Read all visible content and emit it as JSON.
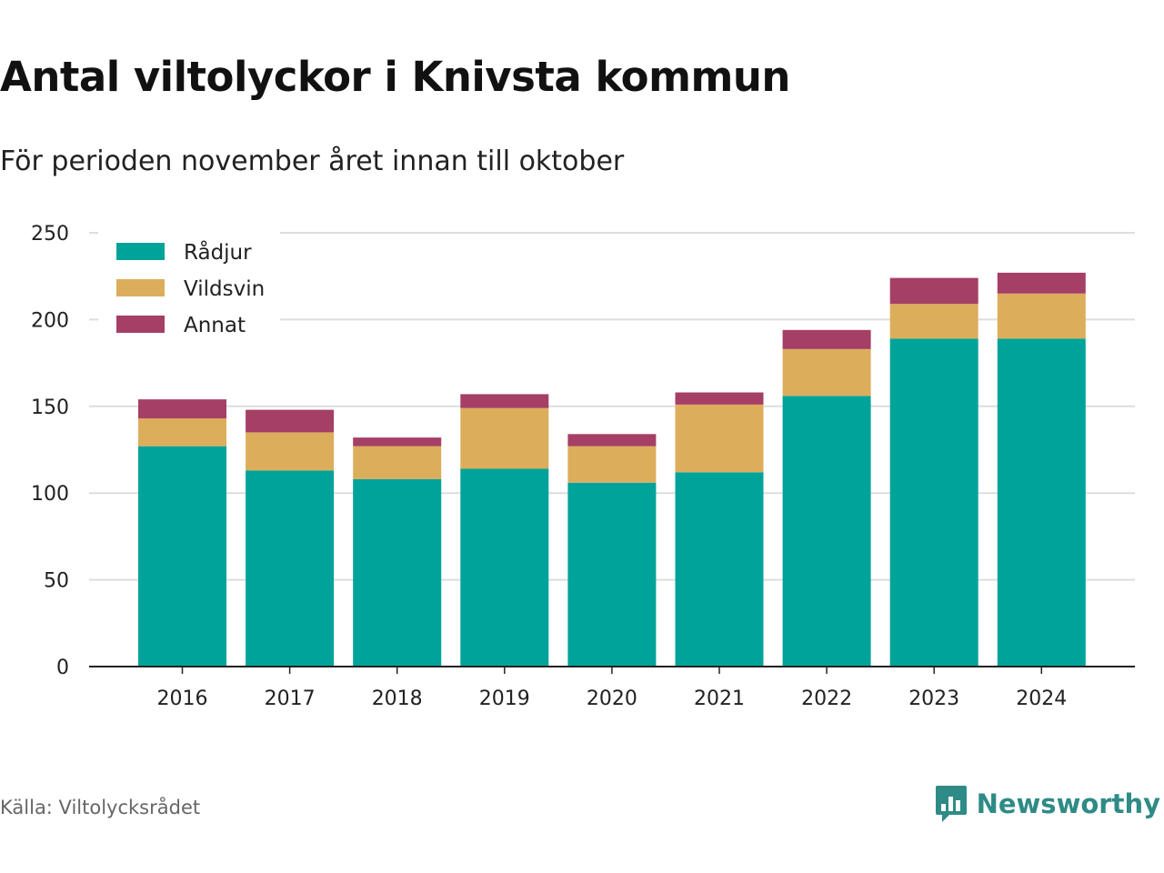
{
  "header": {
    "title": "Antal viltolyckor i Knivsta kommun",
    "subtitle": "För perioden november året innan till oktober"
  },
  "footer": {
    "source": "Källa: Viltolycksrådet",
    "brand": "Newsworthy",
    "brand_icon": "bar-chart-speech-bubble-icon"
  },
  "colors": {
    "Rådjur": "#00a39a",
    "Vildsvin": "#dcad5b",
    "Annat": "#a53f66",
    "brand": "#2e8b86"
  },
  "chart_data": {
    "type": "bar",
    "stacked": true,
    "categories": [
      "2016",
      "2017",
      "2018",
      "2019",
      "2020",
      "2021",
      "2022",
      "2023",
      "2024"
    ],
    "series": [
      {
        "name": "Rådjur",
        "values": [
          127,
          113,
          108,
          114,
          106,
          112,
          156,
          189,
          189
        ]
      },
      {
        "name": "Vildsvin",
        "values": [
          16,
          22,
          19,
          35,
          21,
          39,
          27,
          20,
          26
        ]
      },
      {
        "name": "Annat",
        "values": [
          11,
          13,
          5,
          8,
          7,
          7,
          11,
          15,
          12
        ]
      }
    ],
    "ylim": [
      0,
      250
    ],
    "yticks": [
      0,
      50,
      100,
      150,
      200,
      250
    ],
    "grid": true,
    "legend_position": "top-left"
  }
}
